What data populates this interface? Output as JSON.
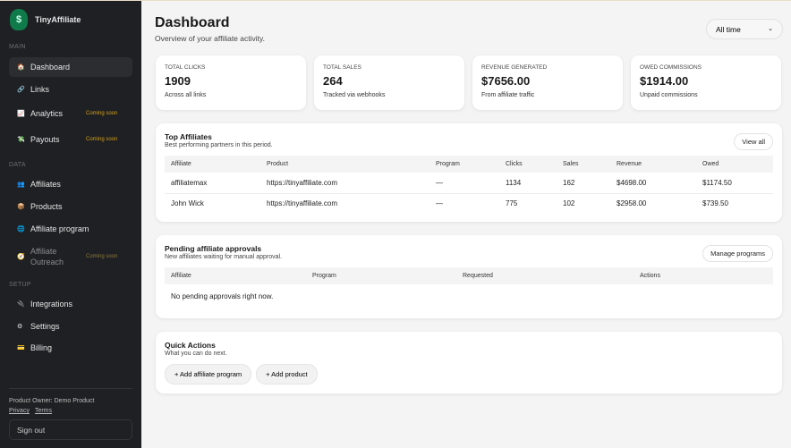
{
  "app": {
    "name": "TinyAffiliate",
    "logo_icon": "money-bag-icon"
  },
  "sidebar": {
    "sections": [
      "MAIN",
      "DATA",
      "SETUP"
    ],
    "items": [
      {
        "label": "Dashboard",
        "icon": "🏠"
      },
      {
        "label": "Links",
        "icon": "🔗"
      },
      {
        "label": "Analytics",
        "icon": "📈",
        "badge": "Coming soon"
      },
      {
        "label": "Payouts",
        "icon": "💸",
        "badge": "Coming soon"
      },
      {
        "label": "Affiliates",
        "icon": "👥"
      },
      {
        "label": "Products",
        "icon": "📦"
      },
      {
        "label": "Affiliate program",
        "icon": "🌐"
      },
      {
        "label": "Affiliate Outreach",
        "icon": "🧭",
        "badge": "Coming soon"
      },
      {
        "label": "Integrations",
        "icon": "🔌"
      },
      {
        "label": "Settings",
        "icon": "⚙"
      },
      {
        "label": "Billing",
        "icon": "💳"
      }
    ],
    "owner": "Product Owner: Demo Product",
    "privacy": "Privacy",
    "terms": "Terms",
    "signout": "Sign out"
  },
  "header": {
    "title": "Dashboard",
    "subtitle": "Overview of your affiliate activity.",
    "range": "All time"
  },
  "stats": [
    {
      "label": "TOTAL CLICKS",
      "value": "1909",
      "desc": "Across all links"
    },
    {
      "label": "TOTAL SALES",
      "value": "264",
      "desc": "Tracked via webhooks"
    },
    {
      "label": "REVENUE GENERATED",
      "value": "$7656.00",
      "desc": "From affiliate traffic"
    },
    {
      "label": "OWED COMMISSIONS",
      "value": "$1914.00",
      "desc": "Unpaid commissions"
    }
  ],
  "top": {
    "title": "Top Affiliates",
    "desc": "Best performing partners in this period.",
    "button": "View all",
    "columns": [
      "Affiliate",
      "Product",
      "Program",
      "Clicks",
      "Sales",
      "Revenue",
      "Owed"
    ],
    "rows": [
      [
        "affiliatemax",
        "https://tinyaffiliate.com",
        "—",
        "1134",
        "162",
        "$4698.00",
        "$1174.50"
      ],
      [
        "John Wick",
        "https://tinyaffiliate.com",
        "—",
        "775",
        "102",
        "$2958.00",
        "$739.50"
      ]
    ]
  },
  "pending": {
    "title": "Pending affiliate approvals",
    "desc": "New affiliates waiting for manual approval.",
    "button": "Manage programs",
    "columns": [
      "Affiliate",
      "Program",
      "Requested",
      "Actions"
    ],
    "empty": "No pending approvals right now."
  },
  "quick": {
    "title": "Quick Actions",
    "desc": "What you can do next.",
    "actions": [
      "+ Add affiliate program",
      "+ Add product"
    ]
  }
}
